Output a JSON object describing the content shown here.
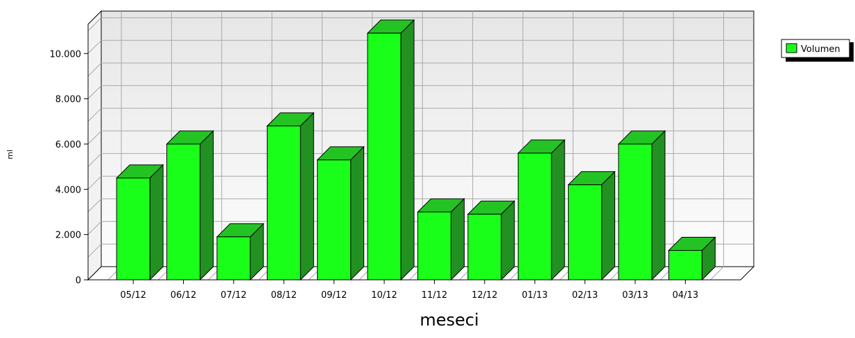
{
  "chart_data": {
    "type": "bar",
    "categories": [
      "05/12",
      "06/12",
      "07/12",
      "08/12",
      "09/12",
      "10/12",
      "11/12",
      "12/12",
      "01/13",
      "02/13",
      "03/13",
      "04/13"
    ],
    "series": [
      {
        "name": "Volumen",
        "values": [
          4500,
          6000,
          1900,
          6800,
          5300,
          10900,
          3000,
          2900,
          5600,
          4200,
          6000,
          1300
        ]
      }
    ],
    "y_ticks": [
      0,
      2000,
      4000,
      6000,
      8000,
      10000
    ],
    "y_tick_labels": [
      "0",
      "2.000",
      "4.000",
      "6.000",
      "8.000",
      "10.000"
    ],
    "xlabel": "meseci",
    "ylabel": "ml",
    "ylim": [
      0,
      12000
    ],
    "grid": true,
    "legend": "top-right",
    "three_d": true,
    "colors": {
      "bar_face": "#1aff1a",
      "bar_side": "#229122",
      "bar_top": "#24c324",
      "bar_outline": "#000000"
    }
  }
}
